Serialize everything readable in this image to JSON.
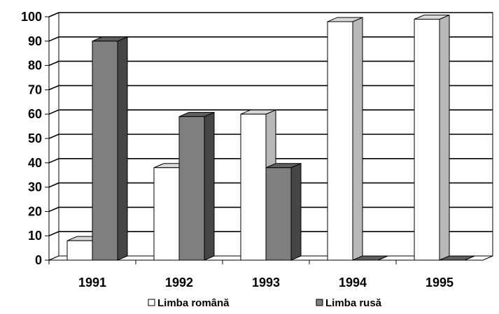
{
  "chart_data": {
    "type": "bar",
    "categories": [
      "1991",
      "1992",
      "1993",
      "1994",
      "1995"
    ],
    "series": [
      {
        "name": "Limba română",
        "values": [
          8,
          38,
          60,
          98,
          99
        ],
        "color": "#ffffff"
      },
      {
        "name": "Limba rusă",
        "values": [
          90,
          59,
          38,
          0,
          0
        ],
        "color": "#7f7f7f"
      }
    ],
    "ylim": [
      0,
      100
    ],
    "yticks": [
      0,
      10,
      20,
      30,
      40,
      50,
      60,
      70,
      80,
      90,
      100
    ],
    "grid": true,
    "three_d": true,
    "legend_position": "bottom"
  }
}
